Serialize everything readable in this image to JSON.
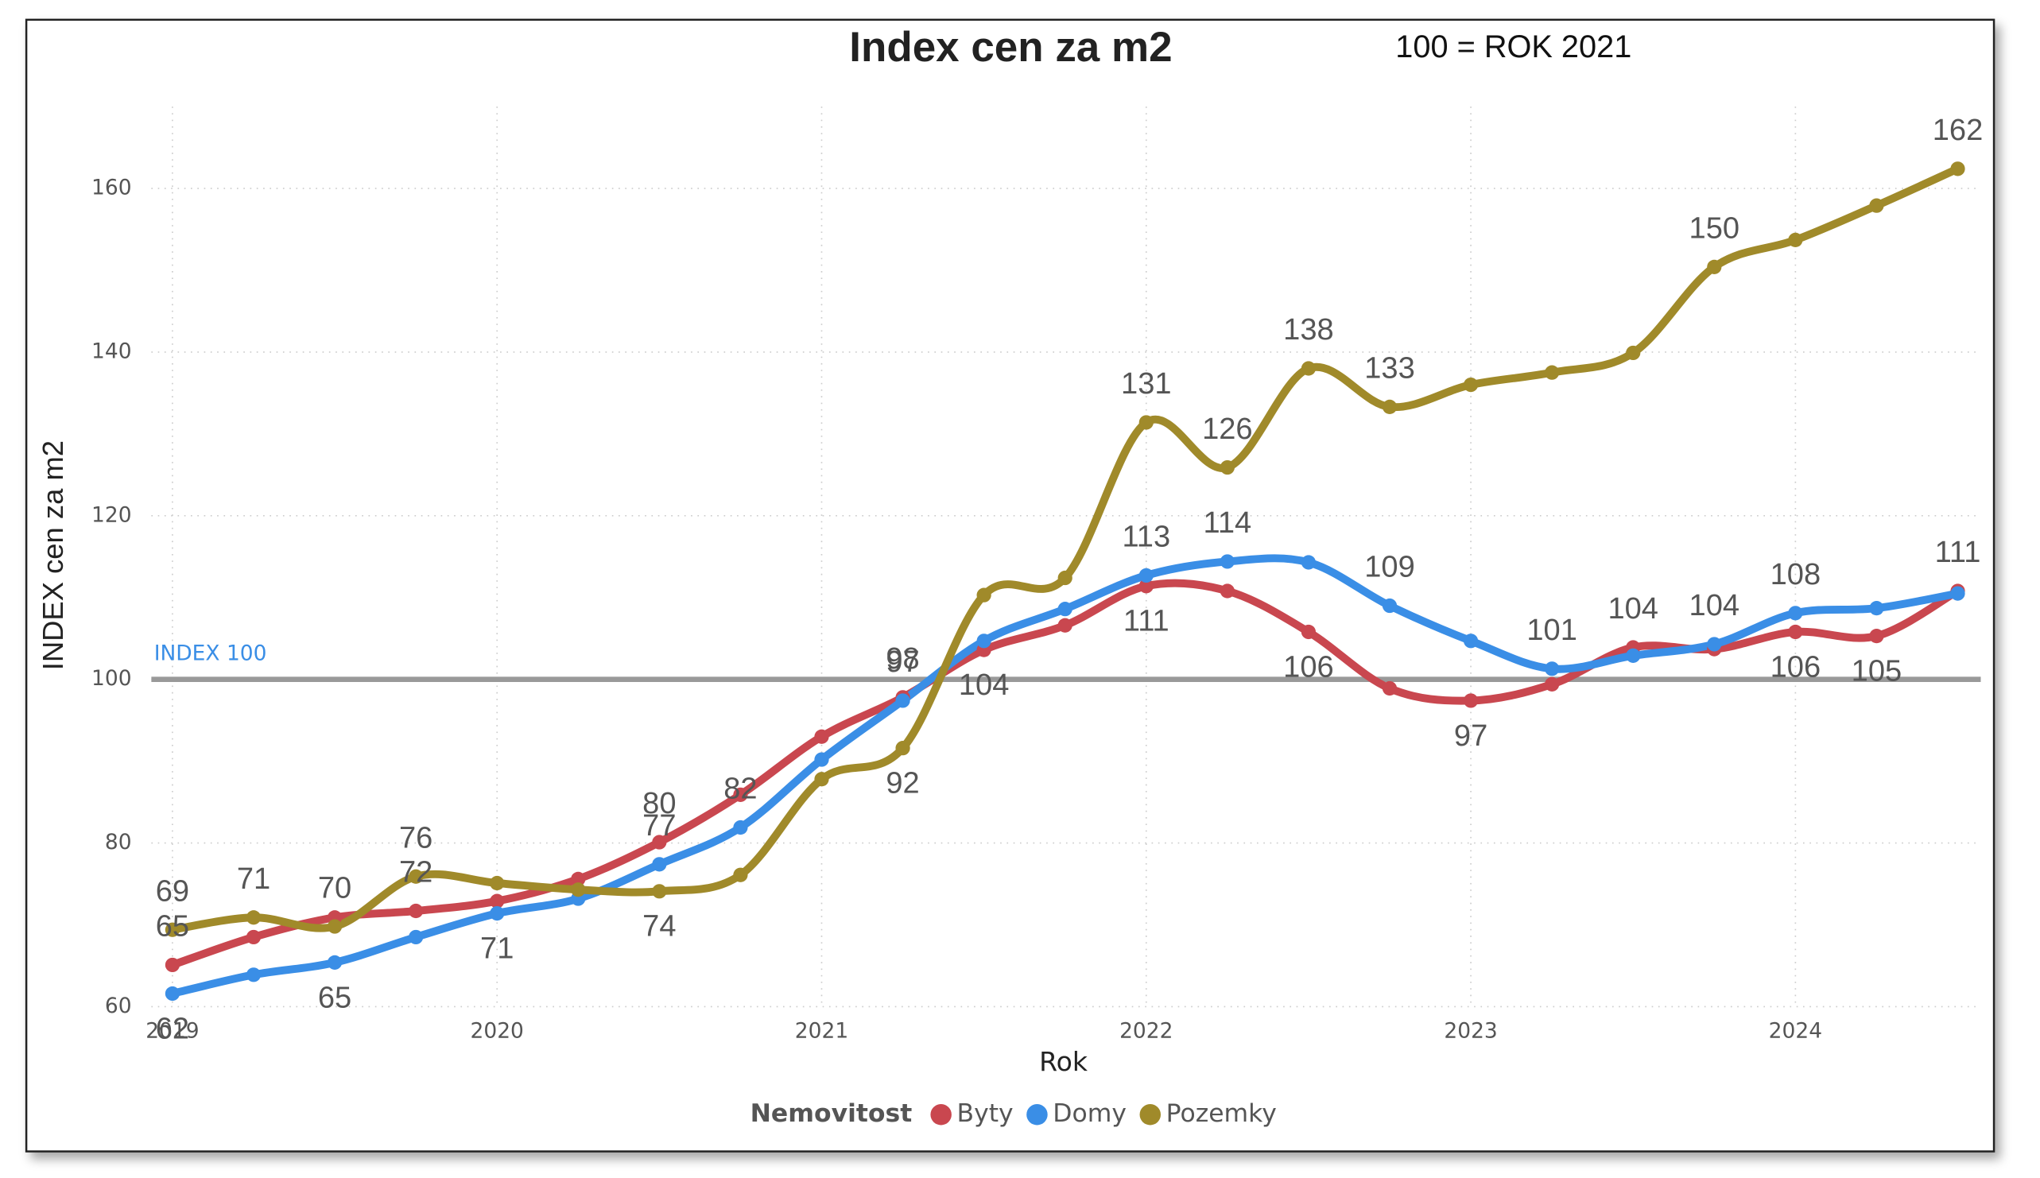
{
  "chart_data": {
    "type": "line",
    "title": "Index cen za m2",
    "subtitle": "100 = ROK 2021",
    "x_label": "Rok",
    "y_label": "INDEX cen za m2",
    "legend_title": "Nemovitost",
    "legend": "bottom",
    "grid": true,
    "x": [
      2019,
      2019.25,
      2019.5,
      2019.75,
      2020,
      2020.25,
      2020.5,
      2020.75,
      2021,
      2021.25,
      2021.5,
      2021.75,
      2022,
      2022.25,
      2022.5,
      2022.75,
      2023,
      2023.25,
      2023.5,
      2023.75,
      2024,
      2024.25,
      2024.5
    ],
    "xlim": [
      2018.935,
      2024.571
    ],
    "xticks": [
      2019,
      2020,
      2021,
      2022,
      2023,
      2024
    ],
    "ylim": [
      60,
      170
    ],
    "yticks": [
      60,
      80,
      100,
      120,
      140,
      160
    ],
    "reference_line": {
      "value": 100,
      "label": "INDEX 100",
      "color": "#999999"
    },
    "series": [
      {
        "name": "Byty",
        "color": "#c9474f",
        "values": [
          65.1,
          68.5,
          70.9,
          71.7,
          72.9,
          75.6,
          80.1,
          85.9,
          93.0,
          97.8,
          103.6,
          106.6,
          111.4,
          110.8,
          105.8,
          98.9,
          97.4,
          99.4,
          103.9,
          103.7,
          105.8,
          105.3,
          110.8
        ],
        "value_labels": [
          "65",
          null,
          null,
          "72",
          null,
          null,
          "80",
          null,
          null,
          "98",
          "104",
          null,
          "111",
          null,
          "106",
          null,
          "97",
          null,
          "104",
          null,
          "106",
          "105",
          "111"
        ]
      },
      {
        "name": "Domy",
        "color": "#3a8ee6",
        "values": [
          61.6,
          63.9,
          65.4,
          68.5,
          71.4,
          73.2,
          77.4,
          81.9,
          90.2,
          97.4,
          104.7,
          108.6,
          112.7,
          114.4,
          114.3,
          109.0,
          104.7,
          101.3,
          102.9,
          104.3,
          108.1,
          108.7,
          110.5
        ],
        "value_labels": [
          "62",
          null,
          "65",
          null,
          "71",
          null,
          "77",
          "82",
          null,
          "97",
          null,
          null,
          "113",
          "114",
          null,
          "109",
          null,
          "101",
          null,
          "104",
          "108",
          null,
          null
        ]
      },
      {
        "name": "Pozemky",
        "color": "#a08a2a",
        "values": [
          69.4,
          70.9,
          69.8,
          75.9,
          75.1,
          74.3,
          74.1,
          76.1,
          87.8,
          91.6,
          110.3,
          112.4,
          131.4,
          125.9,
          138.0,
          133.3,
          136.0,
          137.5,
          139.9,
          150.4,
          153.7,
          157.9,
          162.4
        ],
        "value_labels": [
          "69",
          "71",
          "70",
          "76",
          null,
          null,
          "74",
          null,
          null,
          "92",
          null,
          null,
          "131",
          "126",
          "138",
          "133",
          null,
          null,
          null,
          "150",
          null,
          null,
          "162"
        ]
      }
    ]
  }
}
